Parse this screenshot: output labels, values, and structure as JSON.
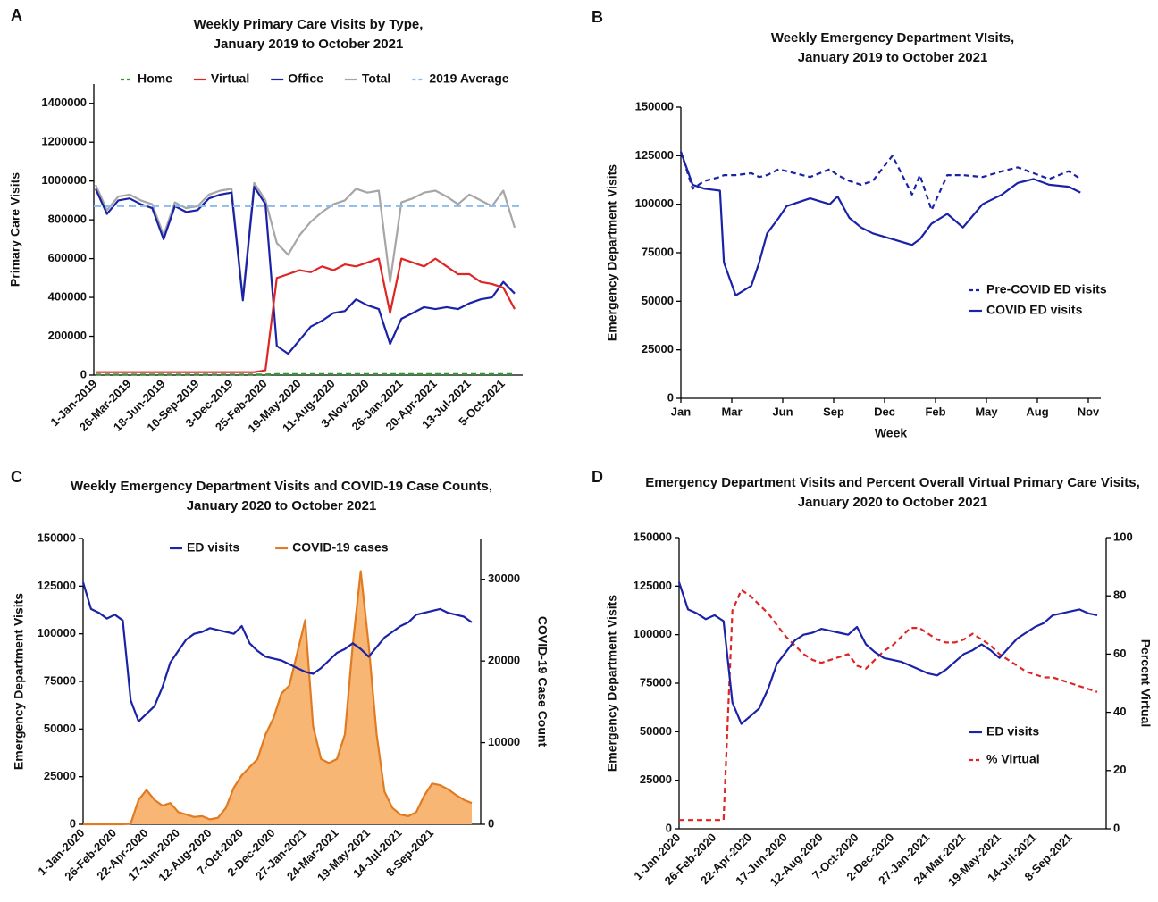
{
  "chart_data": [
    {
      "panel": "A",
      "type": "line",
      "title": [
        "Weekly Primary Care Visits by Type,",
        "January 2019 to October 2021"
      ],
      "y_label": "Primary Care Visits",
      "x": [
        "1-Jan-2019",
        null,
        null,
        "26-Mar-2019",
        null,
        null,
        "18-Jun-2019",
        null,
        null,
        "10-Sep-2019",
        null,
        null,
        "3-Dec-2019",
        null,
        null,
        "25-Feb-2020",
        null,
        null,
        "19-May-2020",
        null,
        null,
        "11-Aug-2020",
        null,
        null,
        "3-Nov-2020",
        null,
        null,
        "26-Jan-2021",
        null,
        null,
        "20-Apr-2021",
        null,
        null,
        "13-Jul-2021",
        null,
        null,
        "5-Oct-2021",
        null
      ],
      "ylim": [
        0,
        1500000
      ],
      "yticks": [
        0,
        200000,
        400000,
        600000,
        800000,
        1000000,
        1200000,
        1400000
      ],
      "legend": "top",
      "series": [
        {
          "name": "Home",
          "color": "#2e9a2e",
          "dash": true,
          "values": [
            3000,
            3000,
            3000,
            3000,
            3000,
            3000,
            3000,
            3000,
            3000,
            3000,
            3000,
            3000,
            3000,
            3000,
            3000,
            3000,
            5000,
            5000,
            5000,
            5000,
            5000,
            5000,
            5000,
            5000,
            5000,
            5000,
            5000,
            5000,
            5000,
            5000,
            5000,
            5000,
            5000,
            5000,
            5000,
            5000,
            5000,
            5000
          ]
        },
        {
          "name": "Virtual",
          "color": "#e02525",
          "values": [
            15000,
            15000,
            15000,
            15000,
            15000,
            15000,
            15000,
            15000,
            15000,
            15000,
            15000,
            15000,
            15000,
            15000,
            15000,
            25000,
            500000,
            520000,
            540000,
            530000,
            560000,
            540000,
            570000,
            560000,
            580000,
            600000,
            320000,
            600000,
            580000,
            560000,
            600000,
            560000,
            520000,
            520000,
            480000,
            470000,
            450000,
            340000
          ]
        },
        {
          "name": "Office",
          "color": "#1a22a8",
          "values": [
            960000,
            830000,
            900000,
            910000,
            880000,
            860000,
            700000,
            870000,
            840000,
            850000,
            910000,
            930000,
            940000,
            385000,
            970000,
            880000,
            150000,
            110000,
            180000,
            250000,
            280000,
            320000,
            330000,
            390000,
            360000,
            340000,
            160000,
            290000,
            320000,
            350000,
            340000,
            350000,
            340000,
            370000,
            390000,
            400000,
            480000,
            420000
          ]
        },
        {
          "name": "Total",
          "color": "#a6a6a6",
          "values": [
            980000,
            850000,
            920000,
            930000,
            900000,
            880000,
            720000,
            890000,
            860000,
            870000,
            930000,
            950000,
            960000,
            400000,
            990000,
            900000,
            680000,
            620000,
            720000,
            790000,
            840000,
            880000,
            900000,
            960000,
            940000,
            950000,
            480000,
            890000,
            910000,
            940000,
            950000,
            920000,
            880000,
            930000,
            900000,
            870000,
            950000,
            760000
          ]
        }
      ],
      "reference_lines": [
        {
          "name": "2019 Average",
          "color": "#8cbcec",
          "value": 870000
        }
      ]
    },
    {
      "panel": "B",
      "type": "line",
      "title": [
        "Weekly Emergency Department VIsits,",
        "January 2019 to October 2021"
      ],
      "x_label": "Week",
      "y_label": "Emergency Department Visits",
      "x": [
        0,
        3,
        6,
        10,
        11,
        14,
        18,
        20,
        22,
        25,
        27,
        33,
        38,
        40,
        43,
        46,
        49,
        54,
        59,
        61,
        64,
        68,
        72,
        77,
        82,
        86,
        90,
        94,
        99,
        102
      ],
      "xlim": [
        0,
        104
      ],
      "xticks": [
        {
          "value": 0,
          "label": "Jan"
        },
        {
          "value": 13,
          "label": "Mar"
        },
        {
          "value": 26,
          "label": "Jun"
        },
        {
          "value": 39,
          "label": "Sep"
        },
        {
          "value": 52,
          "label": "Dec"
        },
        {
          "value": 65,
          "label": "Feb"
        },
        {
          "value": 78,
          "label": "May"
        },
        {
          "value": 91,
          "label": "Aug"
        },
        {
          "value": 104,
          "label": "Nov"
        }
      ],
      "ylim": [
        0,
        150000
      ],
      "yticks": [
        0,
        25000,
        50000,
        75000,
        100000,
        125000,
        150000
      ],
      "legend": "center right",
      "series": [
        {
          "name": "Pre-COVID ED visits",
          "color": "#1a22a8",
          "dash": true,
          "values": [
            127000,
            108000,
            112000,
            114000,
            115000,
            115000,
            116000,
            114000,
            115000,
            118000,
            117000,
            114000,
            118000,
            115000,
            112000,
            110000,
            112000,
            125000,
            105000,
            115000,
            97000,
            115000,
            115000,
            114000,
            117000,
            119000,
            116000,
            113000,
            117000,
            113000
          ]
        },
        {
          "name": "COVID ED visits",
          "color": "#1a22a8",
          "values": [
            127000,
            110000,
            108000,
            107000,
            70000,
            53000,
            58000,
            70000,
            85000,
            93000,
            99000,
            103000,
            100000,
            104000,
            93000,
            88000,
            85000,
            82000,
            79000,
            82000,
            90000,
            95000,
            88000,
            100000,
            105000,
            111000,
            113000,
            110000,
            109000,
            106000
          ]
        }
      ]
    },
    {
      "panel": "C",
      "type": "line",
      "title": [
        "Weekly Emergency Department Visits and COVID-19 Case Counts,",
        "January 2020 to October 2021"
      ],
      "y_label": "Emergency Department Visits",
      "y2_label": "COVID-19 Case Count",
      "x": [
        "1-Jan-2020",
        null,
        null,
        null,
        "26-Feb-2020",
        null,
        null,
        null,
        "22-Apr-2020",
        null,
        null,
        null,
        "17-Jun-2020",
        null,
        null,
        null,
        "12-Aug-2020",
        null,
        null,
        null,
        "7-Oct-2020",
        null,
        null,
        null,
        "2-Dec-2020",
        null,
        null,
        null,
        "27-Jan-2021",
        null,
        null,
        null,
        "24-Mar-2021",
        null,
        null,
        null,
        "19-May-2021",
        null,
        null,
        null,
        "14-Jul-2021",
        null,
        null,
        null,
        "8-Sep-2021",
        null,
        null,
        null,
        null,
        null
      ],
      "ylim": [
        0,
        150000
      ],
      "yticks": [
        0,
        25000,
        50000,
        75000,
        100000,
        125000,
        150000
      ],
      "y2lim": [
        0,
        35000
      ],
      "y2ticks": [
        0,
        10000,
        20000,
        30000
      ],
      "legend": "top",
      "series": [
        {
          "name": "ED visits",
          "color": "#1a22a8",
          "values": [
            127000,
            113000,
            111000,
            108000,
            110000,
            107000,
            65000,
            54000,
            58000,
            62000,
            72000,
            85000,
            91000,
            97000,
            100000,
            101000,
            103000,
            102000,
            101000,
            100000,
            104000,
            95000,
            91000,
            88000,
            87000,
            86000,
            84000,
            82000,
            80000,
            79000,
            82000,
            86000,
            90000,
            92000,
            95000,
            92000,
            88000,
            93000,
            98000,
            101000,
            104000,
            106000,
            110000,
            111000,
            112000,
            113000,
            111000,
            110000,
            109000,
            106000
          ]
        },
        {
          "name": "COVID-19 cases",
          "color": "#e07b22",
          "fill": "#f7b673",
          "area": true,
          "axis": "y2",
          "values": [
            0,
            0,
            0,
            0,
            0,
            0,
            100,
            3000,
            4200,
            3000,
            2300,
            2600,
            1500,
            1200,
            900,
            1000,
            600,
            800,
            2000,
            4500,
            6000,
            7000,
            8000,
            11000,
            13000,
            16000,
            17000,
            21000,
            25000,
            12000,
            8000,
            7500,
            8000,
            11000,
            22000,
            31000,
            22000,
            11000,
            4000,
            2000,
            1200,
            1000,
            1500,
            3500,
            5000,
            4800,
            4300,
            3600,
            3000,
            2600
          ]
        }
      ]
    },
    {
      "panel": "D",
      "type": "line",
      "title": [
        "Emergency Department Visits and Percent Overall Virtual Primary Care Visits,",
        "January 2020 to October 2021"
      ],
      "y_label": "Emergency Department Visits",
      "y2_label": "Percent Virtual",
      "x": [
        "1-Jan-2020",
        null,
        null,
        null,
        "26-Feb-2020",
        null,
        null,
        null,
        "22-Apr-2020",
        null,
        null,
        null,
        "17-Jun-2020",
        null,
        null,
        null,
        "12-Aug-2020",
        null,
        null,
        null,
        "7-Oct-2020",
        null,
        null,
        null,
        "2-Dec-2020",
        null,
        null,
        null,
        "27-Jan-2021",
        null,
        null,
        null,
        "24-Mar-2021",
        null,
        null,
        null,
        "19-May-2021",
        null,
        null,
        null,
        "14-Jul-2021",
        null,
        null,
        null,
        "8-Sep-2021",
        null,
        null,
        null
      ],
      "ylim": [
        0,
        150000
      ],
      "yticks": [
        0,
        25000,
        50000,
        75000,
        100000,
        125000,
        150000
      ],
      "y2lim": [
        0,
        100
      ],
      "y2ticks": [
        0,
        20,
        40,
        60,
        80,
        100
      ],
      "legend": "lower right",
      "series": [
        {
          "name": "ED visits",
          "color": "#1a22a8",
          "values": [
            127000,
            113000,
            111000,
            108000,
            110000,
            107000,
            65000,
            54000,
            58000,
            62000,
            72000,
            85000,
            91000,
            97000,
            100000,
            101000,
            103000,
            102000,
            101000,
            100000,
            104000,
            95000,
            91000,
            88000,
            87000,
            86000,
            84000,
            82000,
            80000,
            79000,
            82000,
            86000,
            90000,
            92000,
            95000,
            92000,
            88000,
            93000,
            98000,
            101000,
            104000,
            106000,
            110000,
            111000,
            112000,
            113000,
            111000,
            110000
          ]
        },
        {
          "name": "% Virtual",
          "color": "#e02525",
          "dash": true,
          "axis": "y2",
          "values": [
            3,
            3,
            3,
            3,
            3,
            3,
            75,
            82,
            80,
            77,
            74,
            70,
            66,
            63,
            60,
            58,
            57,
            58,
            59,
            60,
            56,
            55,
            58,
            61,
            63,
            66,
            69,
            69,
            67,
            65,
            64,
            64,
            65,
            67,
            65,
            63,
            60,
            58,
            56,
            54,
            53,
            52,
            52,
            51,
            50,
            49,
            48,
            47
          ]
        }
      ]
    }
  ]
}
